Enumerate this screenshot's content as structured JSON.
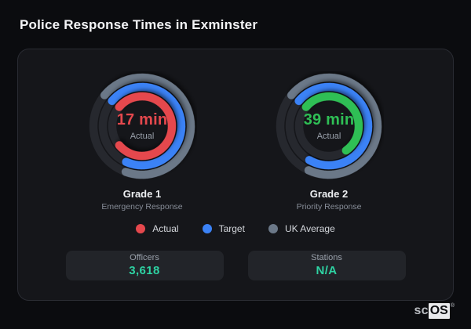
{
  "title": "Police Response Times in Exminster",
  "brand": {
    "prefix": "sc",
    "boxed": "OS",
    "registered": "®"
  },
  "colors": {
    "actual_red": "#e5484d",
    "target_blue": "#3b82f6",
    "uk_average_gray": "#6b7888",
    "actual_green": "#2fbf55",
    "stat_value_teal": "#2ed3a3",
    "ring_track": "#26282e",
    "panel_background": "#15161a",
    "page_background": "#0b0c0f"
  },
  "legend": [
    {
      "label": "Actual",
      "color": "#e5484d"
    },
    {
      "label": "Target",
      "color": "#3b82f6"
    },
    {
      "label": "UK Average",
      "color": "#6b7888"
    }
  ],
  "gauges": [
    {
      "name": "Grade 1",
      "description": "Emergency Response",
      "value_label": "17 min",
      "value_sublabel": "Actual",
      "value_color": "#e5484d",
      "start_angle": 310,
      "rings": [
        {
          "series": "UK Average",
          "color": "#6b7888",
          "radius": 62,
          "sweep": 250
        },
        {
          "series": "Target",
          "color": "#3b82f6",
          "radius": 50,
          "sweep": 254
        },
        {
          "series": "Actual",
          "color": "#e5484d",
          "radius": 38,
          "sweep": 280
        }
      ]
    },
    {
      "name": "Grade 2",
      "description": "Priority Response",
      "value_label": "39 min",
      "value_sublabel": "Actual",
      "value_color": "#2fbf55",
      "start_angle": 310,
      "rings": [
        {
          "series": "UK Average",
          "color": "#6b7888",
          "radius": 62,
          "sweep": 255
        },
        {
          "series": "Target",
          "color": "#3b82f6",
          "radius": 50,
          "sweep": 260
        },
        {
          "series": "Actual",
          "color": "#2fbf55",
          "radius": 38,
          "sweep": 195
        }
      ]
    }
  ],
  "stats": [
    {
      "label": "Officers",
      "value": "3,618"
    },
    {
      "label": "Stations",
      "value": "N/A"
    }
  ],
  "chart_data": [
    {
      "type": "radial-bar",
      "title": "Grade 1 — Emergency Response",
      "center_label": "17 min",
      "center_sublabel": "Actual",
      "actual_minutes": 17,
      "start_angle_deg": 310,
      "series": [
        {
          "name": "Actual",
          "color": "#e5484d",
          "sweep_deg": 280,
          "value_label": "17 min"
        },
        {
          "name": "Target",
          "color": "#3b82f6",
          "sweep_deg": 254,
          "value_label": null
        },
        {
          "name": "UK Average",
          "color": "#6b7888",
          "sweep_deg": 250,
          "value_label": null
        }
      ],
      "legend_position": "bottom-shared"
    },
    {
      "type": "radial-bar",
      "title": "Grade 2 — Priority Response",
      "center_label": "39 min",
      "center_sublabel": "Actual",
      "actual_minutes": 39,
      "start_angle_deg": 310,
      "series": [
        {
          "name": "Actual",
          "color": "#2fbf55",
          "sweep_deg": 195,
          "value_label": "39 min"
        },
        {
          "name": "Target",
          "color": "#3b82f6",
          "sweep_deg": 260,
          "value_label": null
        },
        {
          "name": "UK Average",
          "color": "#6b7888",
          "sweep_deg": 255,
          "value_label": null
        }
      ],
      "legend_position": "bottom-shared"
    }
  ]
}
